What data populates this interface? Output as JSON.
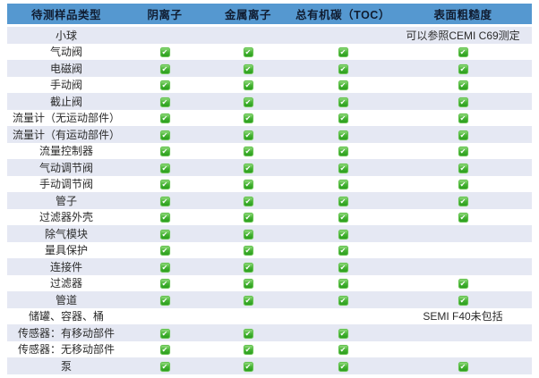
{
  "colors": {
    "header_bg": "#5598d0",
    "row_alt_bg": "#e5e8f3",
    "check_green": "#35a528",
    "header_text": "#101c30"
  },
  "icons": {
    "check": "✔"
  },
  "table": {
    "columns": [
      "待测样品类型",
      "阴离子",
      "金属离子",
      "总有机碳（TOC）",
      "表面粗糙度"
    ],
    "rows": [
      {
        "label": "小球",
        "anion": false,
        "metal": false,
        "toc": false,
        "roughness": false,
        "roughness_note": "可以参照CEMI C69测定"
      },
      {
        "label": "气动阀",
        "anion": true,
        "metal": true,
        "toc": true,
        "roughness": true,
        "roughness_note": ""
      },
      {
        "label": "电磁阀",
        "anion": true,
        "metal": true,
        "toc": true,
        "roughness": true,
        "roughness_note": ""
      },
      {
        "label": "手动阀",
        "anion": true,
        "metal": true,
        "toc": true,
        "roughness": true,
        "roughness_note": ""
      },
      {
        "label": "截止阀",
        "anion": true,
        "metal": true,
        "toc": true,
        "roughness": true,
        "roughness_note": ""
      },
      {
        "label": "流量计（无运动部件）",
        "anion": true,
        "metal": true,
        "toc": true,
        "roughness": true,
        "roughness_note": ""
      },
      {
        "label": "流量计（有运动部件）",
        "anion": true,
        "metal": true,
        "toc": true,
        "roughness": true,
        "roughness_note": ""
      },
      {
        "label": "流量控制器",
        "anion": true,
        "metal": true,
        "toc": true,
        "roughness": true,
        "roughness_note": ""
      },
      {
        "label": "气动调节阀",
        "anion": true,
        "metal": true,
        "toc": true,
        "roughness": true,
        "roughness_note": ""
      },
      {
        "label": "手动调节阀",
        "anion": true,
        "metal": true,
        "toc": true,
        "roughness": true,
        "roughness_note": ""
      },
      {
        "label": "管子",
        "anion": true,
        "metal": true,
        "toc": true,
        "roughness": true,
        "roughness_note": ""
      },
      {
        "label": "过滤器外壳",
        "anion": true,
        "metal": true,
        "toc": true,
        "roughness": true,
        "roughness_note": ""
      },
      {
        "label": "除气模块",
        "anion": true,
        "metal": true,
        "toc": true,
        "roughness": false,
        "roughness_note": ""
      },
      {
        "label": "量具保护",
        "anion": true,
        "metal": true,
        "toc": true,
        "roughness": false,
        "roughness_note": ""
      },
      {
        "label": "连接件",
        "anion": true,
        "metal": true,
        "toc": true,
        "roughness": false,
        "roughness_note": ""
      },
      {
        "label": "过滤器",
        "anion": true,
        "metal": true,
        "toc": true,
        "roughness": true,
        "roughness_note": ""
      },
      {
        "label": "管道",
        "anion": true,
        "metal": true,
        "toc": true,
        "roughness": true,
        "roughness_note": ""
      },
      {
        "label": "储罐、容器、桶",
        "anion": false,
        "metal": false,
        "toc": false,
        "roughness": false,
        "roughness_note": "SEMI F40未包括"
      },
      {
        "label": "传感器：有移动部件",
        "anion": true,
        "metal": true,
        "toc": true,
        "roughness": false,
        "roughness_note": ""
      },
      {
        "label": "传感器：无移动部件",
        "anion": true,
        "metal": true,
        "toc": true,
        "roughness": false,
        "roughness_note": ""
      },
      {
        "label": "泵",
        "anion": true,
        "metal": true,
        "toc": true,
        "roughness": true,
        "roughness_note": ""
      }
    ]
  }
}
